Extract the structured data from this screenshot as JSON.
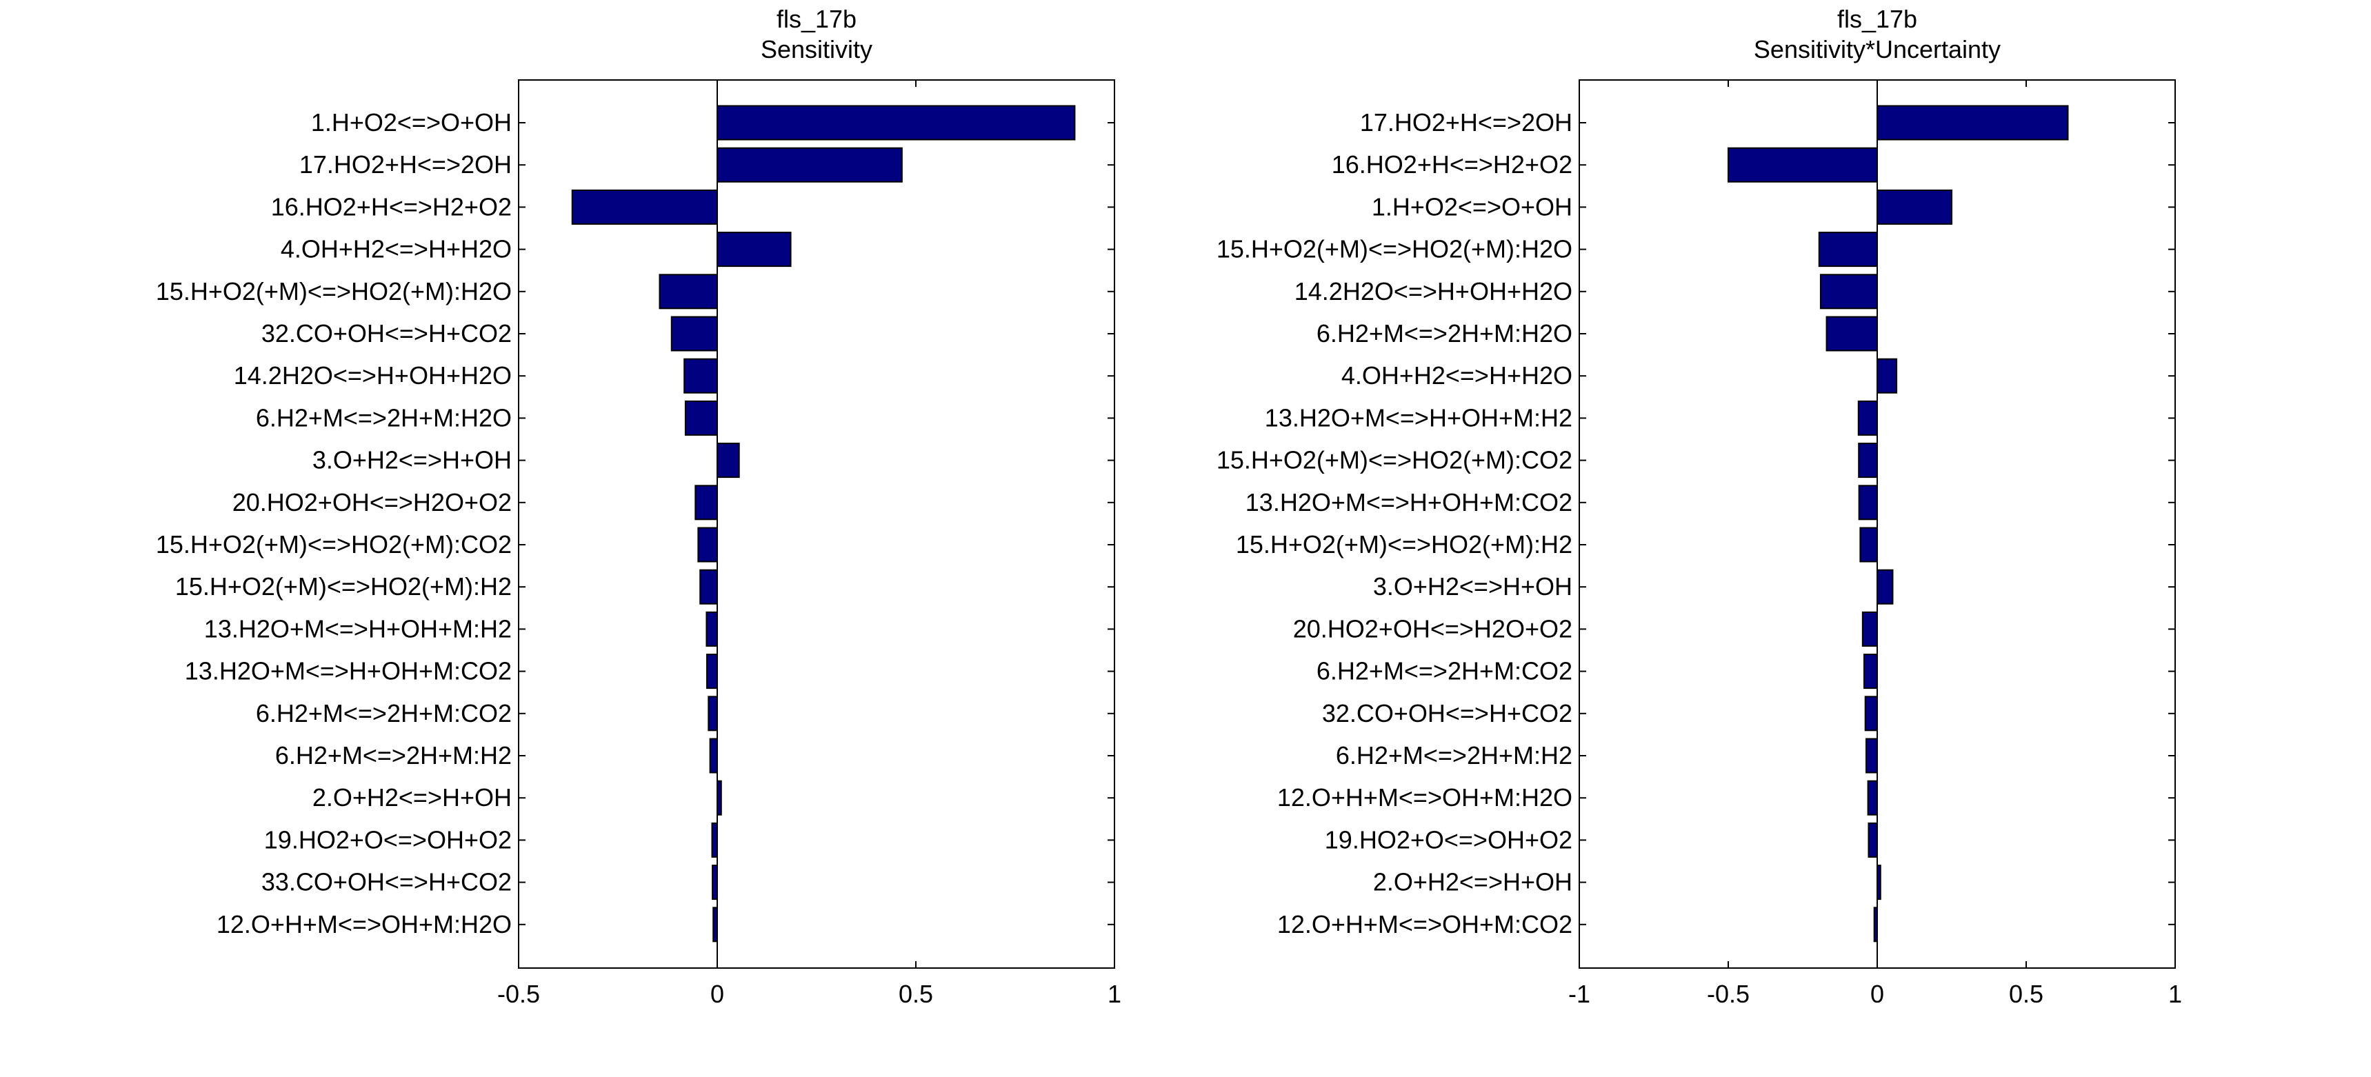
{
  "chart_data": [
    {
      "type": "bar",
      "orientation": "horizontal",
      "title": "fls_17b",
      "subtitle": "Sensitivity",
      "xlim": [
        -0.5,
        1
      ],
      "xticks": [
        "-0.5",
        "0",
        "0.5",
        "1"
      ],
      "bar_color": "#000080",
      "grid": false,
      "categories": [
        "1.H+O2<=>O+OH",
        "17.HO2+H<=>2OH",
        "16.HO2+H<=>H2+O2",
        "4.OH+H2<=>H+H2O",
        "15.H+O2(+M)<=>HO2(+M):H2O",
        "32.CO+OH<=>H+CO2",
        "14.2H2O<=>H+OH+H2O",
        "6.H2+M<=>2H+M:H2O",
        "3.O+H2<=>H+OH",
        "20.HO2+OH<=>H2O+O2",
        "15.H+O2(+M)<=>HO2(+M):CO2",
        "15.H+O2(+M)<=>HO2(+M):H2",
        "13.H2O+M<=>H+OH+M:H2",
        "13.H2O+M<=>H+OH+M:CO2",
        "6.H2+M<=>2H+M:CO2",
        "6.H2+M<=>2H+M:H2",
        "2.O+H2<=>H+OH",
        "19.HO2+O<=>OH+O2",
        "33.CO+OH<=>H+CO2",
        "12.O+H+M<=>OH+M:H2O"
      ],
      "values": [
        0.9,
        0.465,
        -0.365,
        0.185,
        -0.145,
        -0.115,
        -0.083,
        -0.08,
        0.055,
        -0.055,
        -0.048,
        -0.043,
        -0.027,
        -0.026,
        -0.022,
        -0.018,
        0.01,
        -0.013,
        -0.012,
        -0.01
      ]
    },
    {
      "type": "bar",
      "orientation": "horizontal",
      "title": "fls_17b",
      "subtitle": "Sensitivity*Uncertainty",
      "xlim": [
        -1,
        1
      ],
      "xticks": [
        "-1",
        "-0.5",
        "0",
        "0.5",
        "1"
      ],
      "bar_color": "#000080",
      "grid": false,
      "categories": [
        "17.HO2+H<=>2OH",
        "16.HO2+H<=>H2+O2",
        "1.H+O2<=>O+OH",
        "15.H+O2(+M)<=>HO2(+M):H2O",
        "14.2H2O<=>H+OH+H2O",
        "6.H2+M<=>2H+M:H2O",
        "4.OH+H2<=>H+H2O",
        "13.H2O+M<=>H+OH+M:H2",
        "15.H+O2(+M)<=>HO2(+M):CO2",
        "13.H2O+M<=>H+OH+M:CO2",
        "15.H+O2(+M)<=>HO2(+M):H2",
        "3.O+H2<=>H+OH",
        "20.HO2+OH<=>H2O+O2",
        "6.H2+M<=>2H+M:CO2",
        "32.CO+OH<=>H+CO2",
        "6.H2+M<=>2H+M:H2",
        "12.O+H+M<=>OH+M:H2O",
        "19.HO2+O<=>OH+O2",
        "2.O+H2<=>H+OH",
        "12.O+H+M<=>OH+M:CO2"
      ],
      "values": [
        0.64,
        -0.5,
        0.25,
        -0.195,
        -0.19,
        -0.17,
        0.065,
        -0.063,
        -0.062,
        -0.061,
        -0.057,
        0.052,
        -0.049,
        -0.044,
        -0.04,
        -0.037,
        -0.031,
        -0.029,
        0.011,
        -0.01
      ]
    }
  ]
}
